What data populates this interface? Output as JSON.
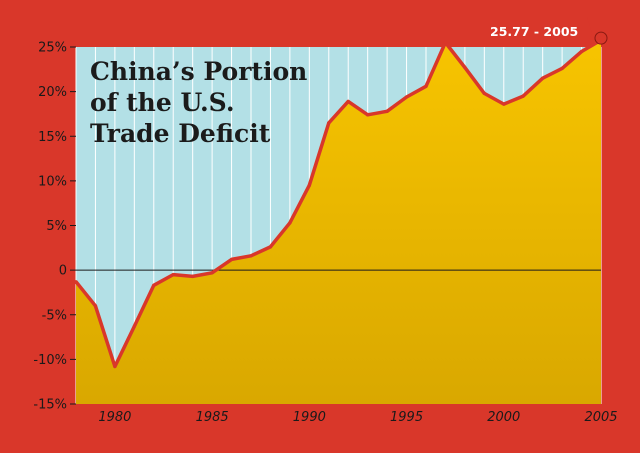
{
  "chart_data": {
    "type": "area",
    "title_lines": [
      "China’s Portion",
      "of the U.S.",
      "Trade Deficit"
    ],
    "x": [
      1978,
      1979,
      1980,
      1981,
      1982,
      1983,
      1984,
      1985,
      1986,
      1987,
      1988,
      1989,
      1990,
      1991,
      1992,
      1993,
      1994,
      1995,
      1996,
      1997,
      1998,
      1999,
      2000,
      2001,
      2002,
      2003,
      2004,
      2005
    ],
    "series": [
      {
        "values": [
          -1.3,
          -4.0,
          -10.8,
          -6.3,
          -1.7,
          -0.5,
          -0.7,
          -0.3,
          1.2,
          1.6,
          2.6,
          5.3,
          9.5,
          16.5,
          18.9,
          17.4,
          17.8,
          19.4,
          20.6,
          25.5,
          22.7,
          19.8,
          18.6,
          19.5,
          21.5,
          22.6,
          24.5,
          25.77
        ]
      }
    ],
    "xlim": [
      1978,
      2005
    ],
    "ylim": [
      -15,
      25
    ],
    "x_ticks": [
      1980,
      1985,
      1990,
      1995,
      2000,
      2005
    ],
    "x_tick_labels": [
      "1980",
      "1985",
      "1990",
      "1995",
      "2000",
      "2005"
    ],
    "y_ticks": [
      -15,
      -10,
      -5,
      0,
      5,
      10,
      15,
      20,
      25
    ],
    "y_tick_labels": [
      "-15%",
      "-10%",
      "-5%",
      "0",
      "5%",
      "10%",
      "15%",
      "20%",
      "25%"
    ],
    "annotation": {
      "text": "25.77 - 2005",
      "x": 2005,
      "y": 25.77
    },
    "grid": "vertical",
    "colors": {
      "border": "#d9372a",
      "plot_background": "#b3e0e6",
      "grid": "#ffffff",
      "area_top": "#f7c400",
      "area_bottom": "#d9a800",
      "line": "#d9372a",
      "zero_line": "#1a1a1a",
      "callout": "#d9372a",
      "marker": "#d9372a"
    }
  }
}
